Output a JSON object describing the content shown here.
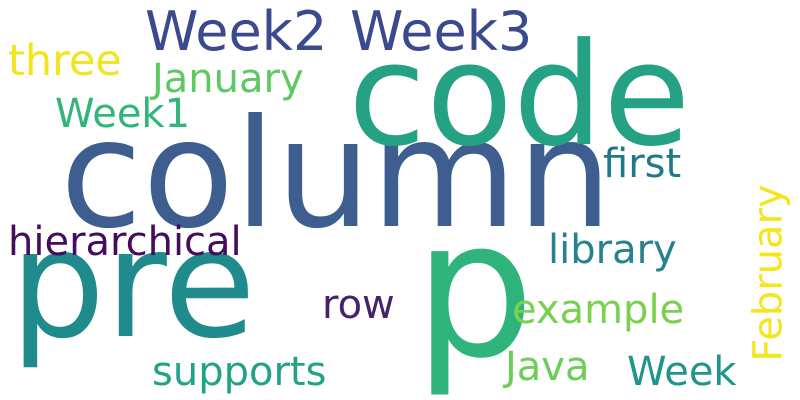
{
  "words": [
    {
      "id": "column",
      "text": "column",
      "color": "#3e5e90"
    },
    {
      "id": "code",
      "text": "code",
      "color": "#25a184"
    },
    {
      "id": "pre",
      "text": "pre",
      "color": "#1f8b8c"
    },
    {
      "id": "p",
      "text": "p",
      "color": "#2fb47c"
    },
    {
      "id": "week2",
      "text": "Week2",
      "color": "#3b4a8c"
    },
    {
      "id": "week3",
      "text": "Week3",
      "color": "#3b4a8c"
    },
    {
      "id": "three",
      "text": "three",
      "color": "#f1e51d"
    },
    {
      "id": "january",
      "text": "January",
      "color": "#5ec962"
    },
    {
      "id": "week1",
      "text": "Week1",
      "color": "#31b57b"
    },
    {
      "id": "first",
      "text": "first",
      "color": "#20798a"
    },
    {
      "id": "hierarchical",
      "text": "hierarchical",
      "color": "#440c5a"
    },
    {
      "id": "library",
      "text": "library",
      "color": "#26828e"
    },
    {
      "id": "row",
      "text": "row",
      "color": "#46226a"
    },
    {
      "id": "example",
      "text": "example",
      "color": "#7ad151"
    },
    {
      "id": "supports",
      "text": "supports",
      "color": "#22a387"
    },
    {
      "id": "java",
      "text": "Java",
      "color": "#6ccd5a"
    },
    {
      "id": "week",
      "text": "Week",
      "color": "#1f958b"
    },
    {
      "id": "february",
      "text": "February",
      "color": "#f4e61e"
    }
  ]
}
